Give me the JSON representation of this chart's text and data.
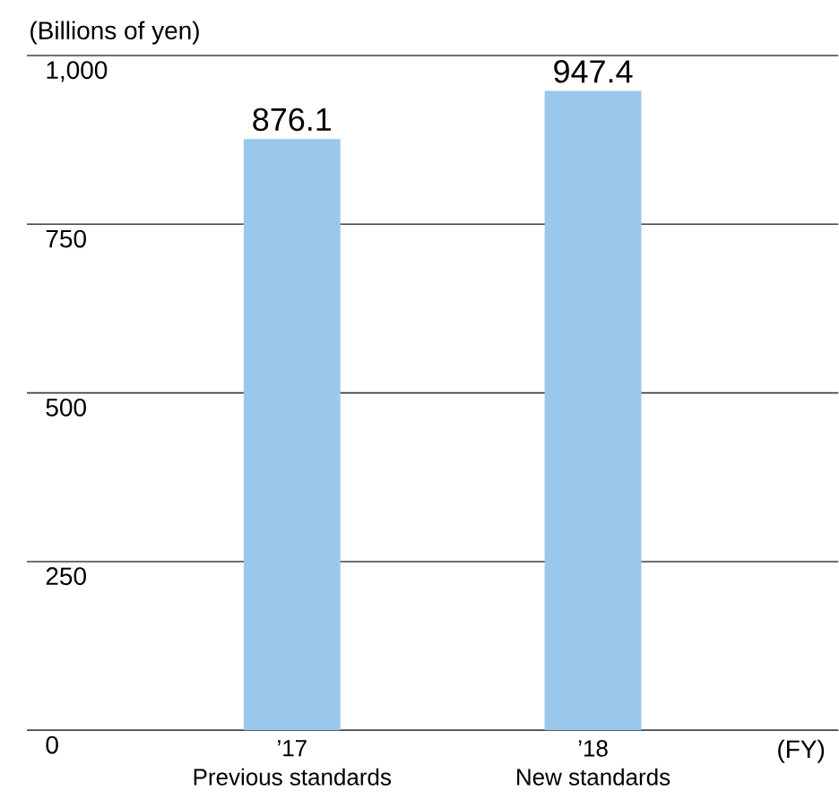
{
  "chart_data": {
    "type": "bar",
    "ylabel": "(Billions of yen)",
    "xlabel": "(FY)",
    "categories": [
      "’17",
      "’18"
    ],
    "values": [
      876.1,
      947.4
    ],
    "color": "#99c8ec",
    "data_labels": true,
    "ylim": [
      0,
      1000
    ],
    "yticks": [
      0,
      250,
      500,
      750,
      {
        "value": 1000,
        "label": "1,000"
      }
    ],
    "grid": "y",
    "annotations": [
      "Previous standards",
      "New standards"
    ]
  }
}
